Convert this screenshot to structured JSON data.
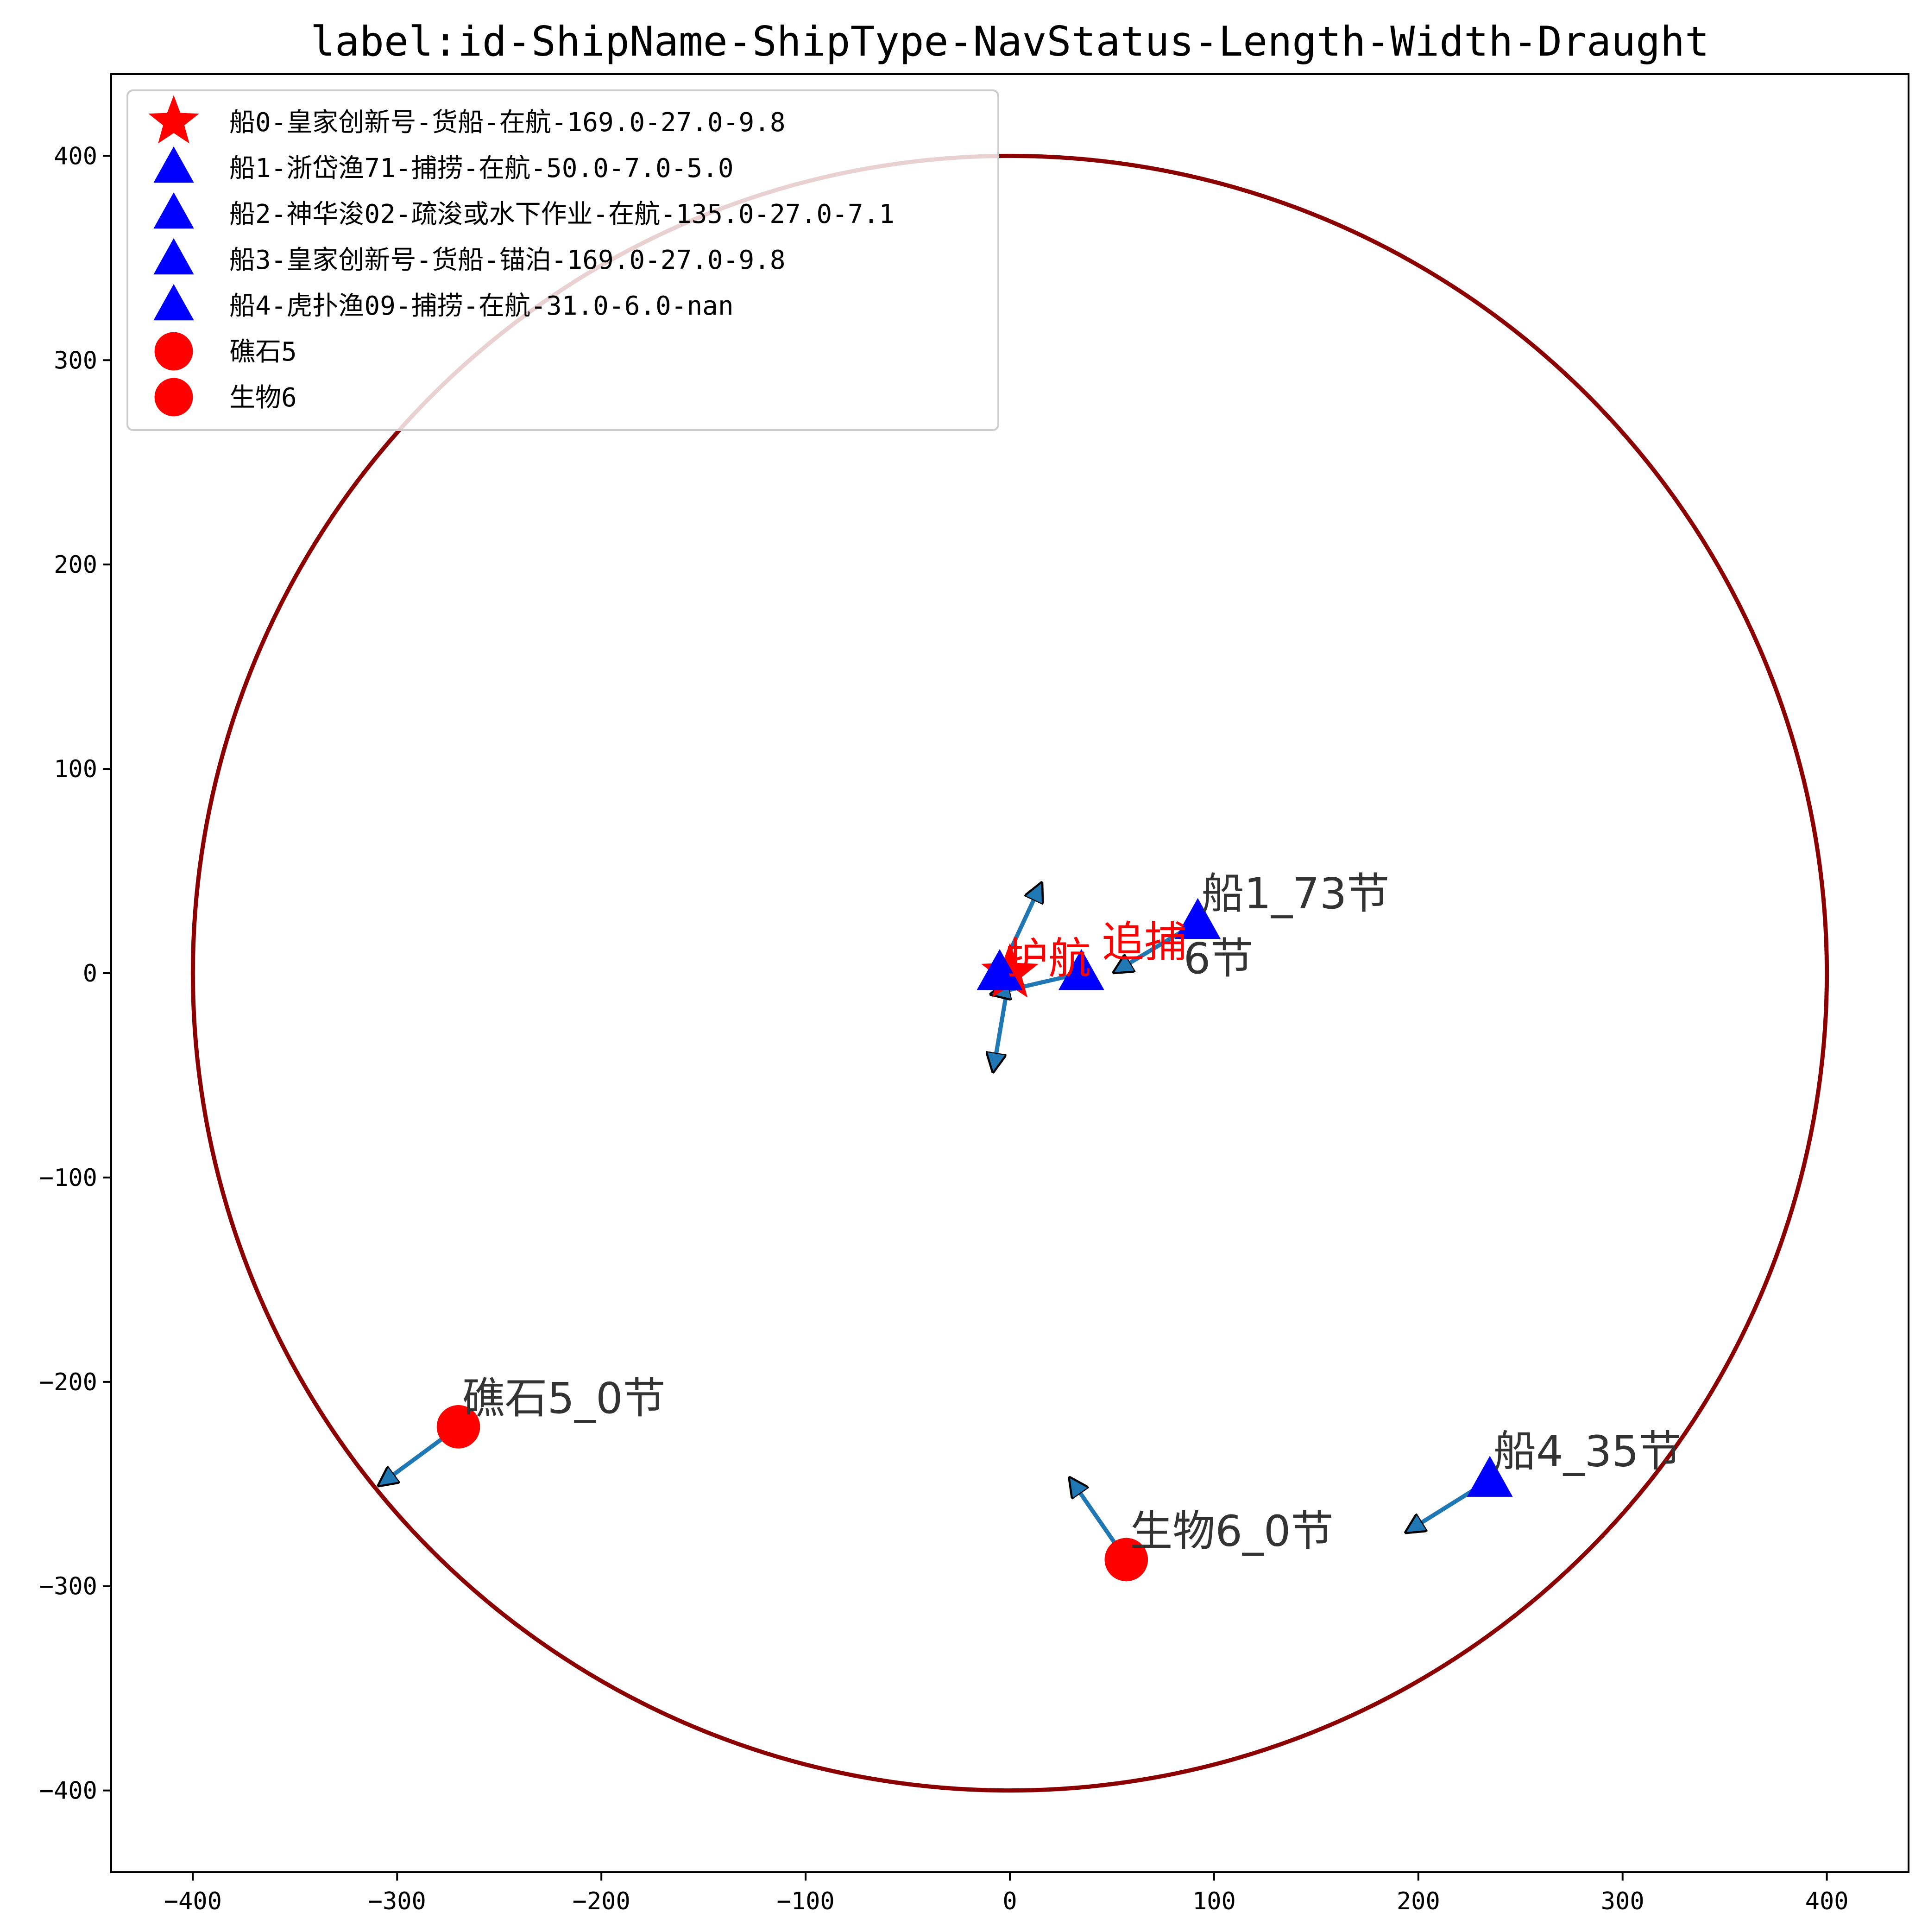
{
  "chart_data": {
    "type": "scatter",
    "title": "label:id-ShipName-ShipType-NavStatus-Length-Width-Draught",
    "xlabel": "",
    "ylabel": "",
    "xlim": [
      -440,
      440
    ],
    "ylim": [
      -440,
      440
    ],
    "xticks": [
      -400,
      -300,
      -200,
      -100,
      0,
      100,
      200,
      300,
      400
    ],
    "yticks": [
      -400,
      -300,
      -200,
      -100,
      0,
      100,
      200,
      300,
      400
    ],
    "grid": false,
    "legend_position": "top-left",
    "range_circle": {
      "center": [
        0,
        0
      ],
      "radius": 400,
      "color": "#8b0000"
    },
    "legend": [
      {
        "label": "船0-皇家创新号-货船-在航-169.0-27.0-9.8",
        "marker": "star",
        "color": "#ff0000"
      },
      {
        "label": "船1-浙岱渔71-捕捞-在航-50.0-7.0-5.0",
        "marker": "triangle",
        "color": "#0000ff"
      },
      {
        "label": "船2-神华浚02-疏浚或水下作业-在航-135.0-27.0-7.1",
        "marker": "triangle",
        "color": "#0000ff"
      },
      {
        "label": "船3-皇家创新号-货船-锚泊-169.0-27.0-9.8",
        "marker": "triangle",
        "color": "#0000ff"
      },
      {
        "label": "船4-虎扑渔09-捕捞-在航-31.0-6.0-nan",
        "marker": "triangle",
        "color": "#0000ff"
      },
      {
        "label": "礁石5",
        "marker": "circle",
        "color": "#ff0000"
      },
      {
        "label": "生物6",
        "marker": "circle",
        "color": "#ff0000"
      }
    ],
    "points": [
      {
        "id": "ship0",
        "x": 0,
        "y": 0,
        "marker": "star",
        "color": "#ff0000",
        "label": "",
        "arrow_to": [
          -8,
          -47
        ]
      },
      {
        "id": "ship1",
        "x": 92,
        "y": 25,
        "marker": "triangle",
        "color": "#0000ff",
        "label": "船1_73节",
        "arrow_to": [
          52,
          1
        ]
      },
      {
        "id": "ship2",
        "x": 35,
        "y": 0,
        "marker": "triangle",
        "color": "#0000ff",
        "label": "",
        "arrow_to": [
          -8,
          -10
        ]
      },
      {
        "id": "ship3",
        "x": -5,
        "y": 0,
        "marker": "triangle",
        "color": "#0000ff",
        "label": "",
        "arrow_to": [
          15,
          43
        ]
      },
      {
        "id": "ship4",
        "x": 235,
        "y": -248,
        "marker": "triangle",
        "color": "#0000ff",
        "label": "船4_35节",
        "arrow_to": [
          195,
          -273
        ]
      },
      {
        "id": "reef5",
        "x": -270,
        "y": -222,
        "marker": "circle",
        "color": "#ff0000",
        "label": "礁石5_0节",
        "arrow_to": [
          -308,
          -250
        ]
      },
      {
        "id": "bio6",
        "x": 57,
        "y": -287,
        "marker": "circle",
        "color": "#ff0000",
        "label": "生物6_0节",
        "arrow_to": [
          30,
          -248
        ]
      }
    ],
    "overlapping_annotations": [
      {
        "text": "追捕",
        "x": 45,
        "y": 8,
        "color": "#ff0000"
      },
      {
        "text": "6节",
        "x": 85,
        "y": 0,
        "color": "#333333"
      },
      {
        "text": "护航",
        "x": -2,
        "y": 0,
        "color": "#ff0000"
      }
    ]
  }
}
